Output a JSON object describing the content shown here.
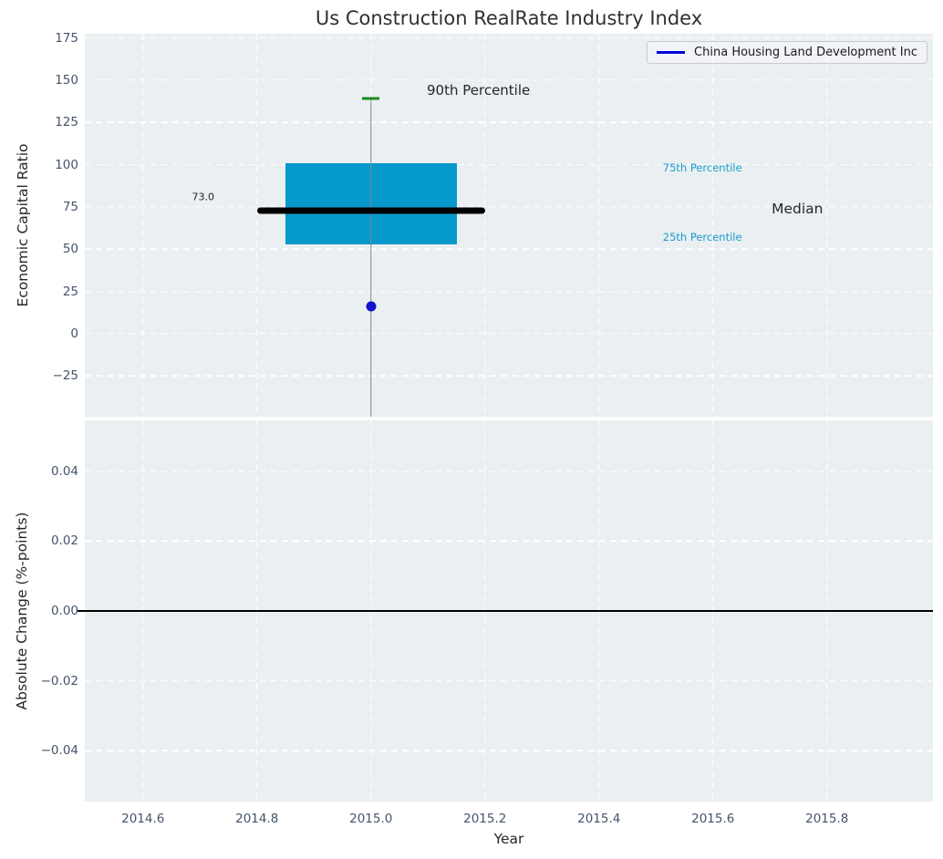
{
  "title": "Us Construction RealRate Industry Index",
  "legend": {
    "label": "China Housing Land Development Inc"
  },
  "colors": {
    "figure_bg": "#ffffff",
    "axes_bg": "#eaeff1",
    "grid": "#ffffff",
    "title_color": "#303030",
    "text_dark": "#262626",
    "tick_label": "#44536b",
    "box_fill": "#0699cb",
    "median_line": "#000000",
    "whisker": "#858585",
    "cap_green": "#1e8b1e",
    "marker_blue": "#1111d0",
    "annotation_cyan": "#1a9bcd",
    "legend_line": "#0202dd",
    "legend_bg": "#f2f3f7",
    "legend_border": "#c9cad1",
    "zero_line": "#000000"
  },
  "chart_data": [
    {
      "type": "bar",
      "subtype": "boxplot",
      "title": "Us Construction RealRate Industry Index",
      "ylabel": "Economic Capital Ratio",
      "xlim": [
        2014.498,
        2015.986
      ],
      "ylim": [
        -49.1,
        177.5
      ],
      "yticks": [
        -25,
        0,
        25,
        50,
        75,
        100,
        125,
        150,
        175
      ],
      "ytick_labels": [
        "−25",
        "0",
        "25",
        "50",
        "75",
        "100",
        "125",
        "150",
        "175"
      ],
      "xticks": [
        2014.6,
        2014.8,
        2015.0,
        2015.2,
        2015.4,
        2015.6,
        2015.8
      ],
      "grid": true,
      "legend_position": "upper right",
      "box": {
        "x": 2015.0,
        "p90": 139,
        "p75": 101,
        "median": 73.0,
        "p25": 53,
        "p10_below_axis": true,
        "box_halfwidth": 0.15,
        "median_halfwidth": 0.2,
        "cap_halfwidth": 0.015
      },
      "company_point": {
        "x": 2015.0,
        "y": 16,
        "series": "China Housing Land Development Inc"
      },
      "annotations": [
        {
          "text": "90th Percentile",
          "x": 2015.098,
          "y": 144,
          "color": "text_dark",
          "size": 15
        },
        {
          "text": "75th Percentile",
          "x": 2015.512,
          "y": 98,
          "color": "annotation_cyan",
          "size": 11.5
        },
        {
          "text": "Median",
          "x": 2015.703,
          "y": 74,
          "color": "text_dark",
          "size": 15.5
        },
        {
          "text": "25th Percentile",
          "x": 2015.512,
          "y": 57,
          "color": "annotation_cyan",
          "size": 11.5
        },
        {
          "text": "73.0",
          "x": 2014.686,
          "y": 81,
          "color": "text_dark",
          "size": 11
        }
      ]
    },
    {
      "type": "line",
      "ylabel": "Absolute Change (%-points)",
      "xlabel": "Year",
      "xlim": [
        2014.498,
        2015.986
      ],
      "ylim": [
        -0.0546,
        0.0546
      ],
      "yticks": [
        -0.04,
        -0.02,
        0.0,
        0.02,
        0.04
      ],
      "ytick_labels": [
        "−0.04",
        "−0.02",
        "0.00",
        "0.02",
        "0.04"
      ],
      "xticks": [
        2014.6,
        2014.8,
        2015.0,
        2015.2,
        2015.4,
        2015.6,
        2015.8
      ],
      "xtick_labels": [
        "2014.6",
        "2014.8",
        "2015.0",
        "2015.2",
        "2015.4",
        "2015.6",
        "2015.8"
      ],
      "grid": true,
      "zero_line": 0.0,
      "series": []
    }
  ]
}
